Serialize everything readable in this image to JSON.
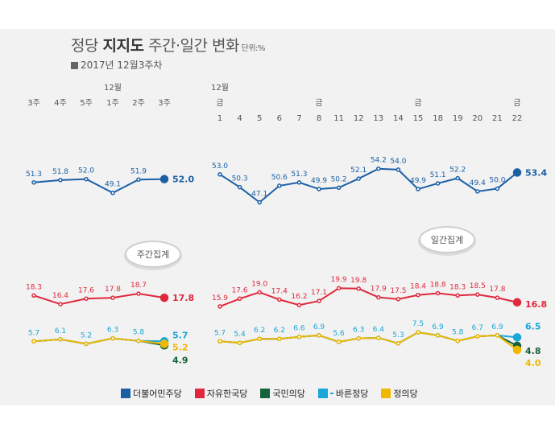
{
  "title": {
    "prefix": "정당 ",
    "strong": "지지도",
    "rest": " 주간·일간 변화",
    "unit": " 단위:%"
  },
  "subtitle": "2017년 12월3주차",
  "weekly_label": "주간집계",
  "daily_label": "일간집계",
  "month_label_weekly": "12월",
  "month_label_daily": "12월",
  "colors": {
    "minjoo": "#1a5fa6",
    "jayu": "#e0283c",
    "kukmin": "#15633a",
    "bareun": "#1aa6d8",
    "jeongui": "#f0b800",
    "gray": "#9a9a9a"
  },
  "legend": [
    {
      "name": "더불어민주당",
      "color": "#1a5fa6",
      "icon": "minjoo-logo-icon"
    },
    {
      "name": "자유한국당",
      "color": "#e0283c",
      "icon": "jayu-logo-icon"
    },
    {
      "name": "국민의당",
      "color": "#15633a",
      "icon": "kukmin-logo-icon"
    },
    {
      "name": "바른정당",
      "color": "#1aa6d8",
      "icon": "bareun-logo-icon",
      "badge": "바른정당"
    },
    {
      "name": "정의당",
      "color": "#f0b800",
      "icon": "jeongui-logo-icon"
    }
  ],
  "chart_data": [
    {
      "type": "line",
      "name": "weekly",
      "categories": [
        "3주",
        "4주",
        "5주",
        "1주",
        "2주",
        "3주"
      ],
      "series": [
        {
          "name": "더불어민주당",
          "values": [
            51.3,
            51.8,
            52.0,
            49.1,
            51.9,
            52.0
          ]
        },
        {
          "name": "자유한국당",
          "values": [
            18.3,
            16.4,
            17.6,
            17.8,
            18.7,
            17.8
          ]
        },
        {
          "name": "국민의당",
          "values": [
            5.7,
            6.1,
            5.2,
            6.3,
            5.8,
            4.9
          ]
        },
        {
          "name": "바른정당",
          "values": [
            5.7,
            6.1,
            5.2,
            6.3,
            5.8,
            5.7
          ]
        },
        {
          "name": "정의당",
          "values": [
            5.7,
            6.1,
            5.2,
            6.3,
            5.8,
            5.2
          ]
        }
      ]
    },
    {
      "type": "line",
      "name": "daily",
      "categories": [
        "1",
        "4",
        "5",
        "6",
        "7",
        "8",
        "11",
        "12",
        "13",
        "14",
        "15",
        "18",
        "19",
        "20",
        "21",
        "22"
      ],
      "day_markers": [
        "금",
        "",
        "",
        "",
        "",
        "금",
        "",
        "",
        "",
        "",
        "금",
        "",
        "",
        "",
        "",
        "금"
      ],
      "series": [
        {
          "name": "더불어민주당",
          "values": [
            53.0,
            50.3,
            47.1,
            50.6,
            51.3,
            49.9,
            50.2,
            52.1,
            54.2,
            54.0,
            49.9,
            51.1,
            52.2,
            49.4,
            50.0,
            53.4
          ]
        },
        {
          "name": "자유한국당",
          "values": [
            15.9,
            17.6,
            19.0,
            17.4,
            16.2,
            17.1,
            19.9,
            19.8,
            17.9,
            17.5,
            18.4,
            18.8,
            18.3,
            18.5,
            17.8,
            16.8
          ]
        },
        {
          "name": "국민의당",
          "values": [
            5.7,
            5.4,
            6.2,
            6.2,
            6.6,
            6.9,
            5.6,
            6.3,
            6.4,
            5.3,
            7.5,
            6.9,
            5.8,
            6.7,
            6.9,
            4.8
          ]
        },
        {
          "name": "바른정당",
          "values": [
            5.7,
            5.4,
            6.2,
            6.2,
            6.6,
            6.9,
            5.6,
            6.3,
            6.4,
            5.3,
            7.5,
            6.9,
            5.8,
            6.7,
            6.9,
            6.5
          ]
        },
        {
          "name": "정의당",
          "values": [
            5.7,
            5.4,
            6.2,
            6.2,
            6.6,
            6.9,
            5.6,
            6.3,
            6.4,
            5.3,
            7.5,
            6.9,
            5.8,
            6.7,
            6.9,
            4.0
          ]
        }
      ]
    }
  ]
}
